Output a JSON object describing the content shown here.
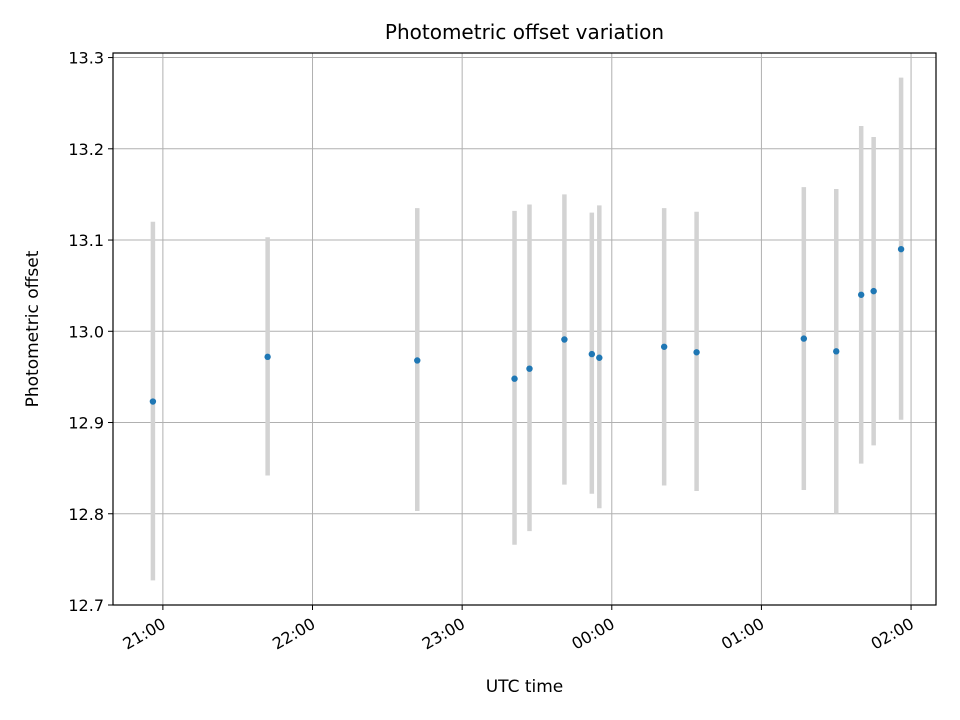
{
  "chart_data": {
    "type": "scatter",
    "title": "Photometric offset variation",
    "xlabel": "UTC time",
    "ylabel": "Photometric offset",
    "ylim": [
      12.7,
      13.305
    ],
    "xlim": [
      "20:40",
      "02:10"
    ],
    "y_ticks": [
      "12.7",
      "12.8",
      "12.9",
      "13.0",
      "13.1",
      "13.2",
      "13.3"
    ],
    "x_ticks": [
      "21:00",
      "22:00",
      "23:00",
      "00:00",
      "01:00",
      "02:00"
    ],
    "x_tick_times": [
      "21:00",
      "22:00",
      "23:00",
      "00:00",
      "01:00",
      "02:00"
    ],
    "grid": true,
    "marker_color": "#1f77b4",
    "errorbar_color": "#d3d3d3",
    "series": [
      {
        "x": [
          "20:56",
          "21:42",
          "22:42",
          "23:21",
          "23:27",
          "23:41",
          "23:52",
          "23:55",
          "00:21",
          "00:34",
          "01:17",
          "01:30",
          "01:40",
          "01:45",
          "01:56"
        ],
        "y": [
          12.923,
          12.972,
          12.968,
          12.948,
          12.959,
          12.991,
          12.975,
          12.971,
          12.983,
          12.977,
          12.992,
          12.978,
          13.04,
          13.044,
          13.09
        ],
        "y_low": [
          12.727,
          12.842,
          12.803,
          12.766,
          12.781,
          12.832,
          12.822,
          12.806,
          12.831,
          12.825,
          12.826,
          12.8,
          12.855,
          12.875,
          12.903
        ],
        "y_high": [
          13.12,
          13.103,
          13.135,
          13.132,
          13.139,
          13.15,
          13.13,
          13.138,
          13.135,
          13.131,
          13.158,
          13.156,
          13.225,
          13.213,
          13.278
        ]
      }
    ]
  }
}
